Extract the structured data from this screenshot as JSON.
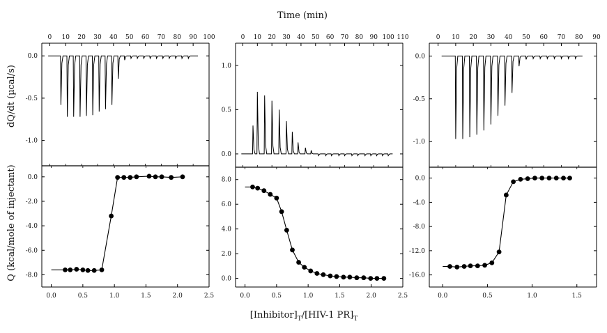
{
  "figure": {
    "top_axis_title": "Time (min)",
    "left_top_ylabel": "dQ/dt (µcal/s)",
    "left_bottom_ylabel": "Q (kcal/mole of injectant)",
    "bottom_axis_title_main": "[Inhibitor]",
    "bottom_axis_title_sub1": "T",
    "bottom_axis_title_mid": "/[HIV-1 PR]",
    "bottom_axis_title_sub2": "T"
  },
  "chart_data": [
    {
      "type": "line",
      "panel": "left-thermogram",
      "xlabel": "Time (min)",
      "ylabel": "dQ/dt (µcal/s)",
      "xlim": [
        -5,
        100
      ],
      "ylim": [
        -1.3,
        0.15
      ],
      "xticks": [
        0,
        10,
        20,
        30,
        40,
        50,
        60,
        70,
        80,
        90,
        100
      ],
      "yticks": [
        0.0,
        -0.5,
        -1.0
      ],
      "ytick_labels": [
        "0.0",
        "-0.5",
        "-1.0"
      ],
      "baseline": 0.0,
      "peaks": [
        {
          "t": 7,
          "height": -0.58
        },
        {
          "t": 11,
          "height": -0.72
        },
        {
          "t": 15,
          "height": -0.72
        },
        {
          "t": 19,
          "height": -0.72
        },
        {
          "t": 23,
          "height": -0.71
        },
        {
          "t": 27,
          "height": -0.7
        },
        {
          "t": 31,
          "height": -0.66
        },
        {
          "t": 35,
          "height": -0.63
        },
        {
          "t": 39,
          "height": -0.58
        },
        {
          "t": 43,
          "height": -0.27
        },
        {
          "t": 47,
          "height": -0.05
        },
        {
          "t": 51,
          "height": -0.03
        },
        {
          "t": 55,
          "height": -0.03
        },
        {
          "t": 59,
          "height": -0.03
        },
        {
          "t": 63,
          "height": -0.03
        },
        {
          "t": 67,
          "height": -0.03
        },
        {
          "t": 71,
          "height": -0.03
        },
        {
          "t": 75,
          "height": -0.03
        },
        {
          "t": 79,
          "height": -0.03
        },
        {
          "t": 83,
          "height": -0.03
        },
        {
          "t": 87,
          "height": -0.03
        }
      ],
      "trace_end": 93
    },
    {
      "type": "line",
      "panel": "middle-thermogram",
      "xlabel": "Time (min)",
      "xlim": [
        -5,
        110
      ],
      "ylim": [
        -0.15,
        1.25
      ],
      "xticks": [
        0,
        10,
        20,
        30,
        40,
        50,
        60,
        70,
        80,
        90,
        100,
        110
      ],
      "yticks": [
        1.0,
        0.5,
        0.0
      ],
      "ytick_labels": [
        "1.0",
        "0.5",
        "0.0"
      ],
      "baseline": 0.0,
      "peaks": [
        {
          "t": 7,
          "height": 0.32
        },
        {
          "t": 10,
          "height": 0.7
        },
        {
          "t": 15,
          "height": 0.66
        },
        {
          "t": 20,
          "height": 0.6
        },
        {
          "t": 25,
          "height": 0.5
        },
        {
          "t": 30,
          "height": 0.37
        },
        {
          "t": 34,
          "height": 0.25
        },
        {
          "t": 38,
          "height": 0.13
        },
        {
          "t": 43,
          "height": 0.07
        },
        {
          "t": 47,
          "height": 0.04
        },
        {
          "t": 52,
          "height": -0.02
        },
        {
          "t": 57,
          "height": -0.02
        },
        {
          "t": 61,
          "height": -0.02
        },
        {
          "t": 66,
          "height": -0.02
        },
        {
          "t": 70,
          "height": -0.02
        },
        {
          "t": 75,
          "height": -0.02
        },
        {
          "t": 79,
          "height": -0.02
        },
        {
          "t": 84,
          "height": -0.02
        },
        {
          "t": 88,
          "height": -0.02
        },
        {
          "t": 92,
          "height": -0.02
        },
        {
          "t": 96,
          "height": -0.02
        },
        {
          "t": 100,
          "height": -0.02
        }
      ],
      "trace_end": 103
    },
    {
      "type": "line",
      "panel": "right-thermogram",
      "xlabel": "Time (min)",
      "xlim": [
        -5,
        90
      ],
      "ylim": [
        -1.3,
        0.15
      ],
      "xticks": [
        0,
        10,
        20,
        30,
        40,
        50,
        60,
        70,
        80,
        90
      ],
      "yticks": [
        0.0,
        -0.5,
        -1.0
      ],
      "ytick_labels": [
        "0.0",
        "-0.5",
        "-1.0"
      ],
      "baseline": 0.0,
      "peaks": [
        {
          "t": 10,
          "height": -0.97
        },
        {
          "t": 14,
          "height": -0.97
        },
        {
          "t": 18,
          "height": -0.95
        },
        {
          "t": 22,
          "height": -0.92
        },
        {
          "t": 26,
          "height": -0.87
        },
        {
          "t": 30,
          "height": -0.8
        },
        {
          "t": 34,
          "height": -0.7
        },
        {
          "t": 38,
          "height": -0.58
        },
        {
          "t": 42,
          "height": -0.43
        },
        {
          "t": 46,
          "height": -0.12
        },
        {
          "t": 50,
          "height": -0.04
        },
        {
          "t": 54,
          "height": -0.03
        },
        {
          "t": 58,
          "height": -0.03
        },
        {
          "t": 62,
          "height": -0.03
        },
        {
          "t": 66,
          "height": -0.03
        },
        {
          "t": 70,
          "height": -0.03
        },
        {
          "t": 74,
          "height": -0.03
        },
        {
          "t": 78,
          "height": -0.03
        }
      ],
      "trace_start": 2,
      "trace_end": 82
    },
    {
      "type": "scatter",
      "panel": "left-isotherm",
      "xlabel": "[Inhibitor]T/[HIV-1 PR]T",
      "ylabel": "Q (kcal/mole of injectant)",
      "xlim": [
        -0.15,
        2.5
      ],
      "ylim": [
        -9.0,
        0.9
      ],
      "xticks": [
        0.0,
        0.5,
        1.0,
        1.5,
        2.0,
        2.5
      ],
      "xtick_labels": [
        "0.0",
        "0.5",
        "1.0",
        "1.5",
        "2.0",
        "2.5"
      ],
      "yticks": [
        0.0,
        -2.0,
        -4.0,
        -6.0,
        -8.0
      ],
      "ytick_labels": [
        "0.0",
        "-2.0",
        "-4.0",
        "-6.0",
        "-8.0"
      ],
      "fit_start": 0.0,
      "points": [
        {
          "x": 0.22,
          "y": -7.6
        },
        {
          "x": 0.3,
          "y": -7.6
        },
        {
          "x": 0.4,
          "y": -7.55
        },
        {
          "x": 0.5,
          "y": -7.6
        },
        {
          "x": 0.58,
          "y": -7.65
        },
        {
          "x": 0.68,
          "y": -7.65
        },
        {
          "x": 0.8,
          "y": -7.6
        },
        {
          "x": 0.95,
          "y": -3.2
        },
        {
          "x": 1.05,
          "y": -0.05
        },
        {
          "x": 1.15,
          "y": -0.05
        },
        {
          "x": 1.25,
          "y": -0.05
        },
        {
          "x": 1.35,
          "y": 0.0
        },
        {
          "x": 1.55,
          "y": 0.05
        },
        {
          "x": 1.65,
          "y": 0.0
        },
        {
          "x": 1.75,
          "y": 0.0
        },
        {
          "x": 1.9,
          "y": -0.05
        },
        {
          "x": 2.08,
          "y": 0.0
        }
      ]
    },
    {
      "type": "scatter",
      "panel": "middle-isotherm",
      "xlabel": "[Inhibitor]T/[HIV-1 PR]T",
      "xlim": [
        -0.15,
        2.5
      ],
      "ylim": [
        -0.7,
        9.0
      ],
      "xticks": [
        0.0,
        0.5,
        1.0,
        1.5,
        2.0,
        2.5
      ],
      "xtick_labels": [
        "0.0",
        "0.5",
        "1.0",
        "1.5",
        "2.0",
        "2.5"
      ],
      "yticks": [
        8.0,
        6.0,
        4.0,
        2.0,
        0.0
      ],
      "ytick_labels": [
        "8.0",
        "6.0",
        "4.0",
        "2.0",
        "0.0"
      ],
      "fit_start": 0.0,
      "points": [
        {
          "x": 0.12,
          "y": 7.4
        },
        {
          "x": 0.2,
          "y": 7.3
        },
        {
          "x": 0.3,
          "y": 7.1
        },
        {
          "x": 0.4,
          "y": 6.8
        },
        {
          "x": 0.5,
          "y": 6.5
        },
        {
          "x": 0.58,
          "y": 5.4
        },
        {
          "x": 0.66,
          "y": 3.9
        },
        {
          "x": 0.75,
          "y": 2.3
        },
        {
          "x": 0.85,
          "y": 1.3
        },
        {
          "x": 0.94,
          "y": 0.9
        },
        {
          "x": 1.04,
          "y": 0.6
        },
        {
          "x": 1.14,
          "y": 0.4
        },
        {
          "x": 1.24,
          "y": 0.3
        },
        {
          "x": 1.35,
          "y": 0.2
        },
        {
          "x": 1.45,
          "y": 0.15
        },
        {
          "x": 1.56,
          "y": 0.1
        },
        {
          "x": 1.66,
          "y": 0.1
        },
        {
          "x": 1.77,
          "y": 0.05
        },
        {
          "x": 1.88,
          "y": 0.05
        },
        {
          "x": 1.99,
          "y": 0.0
        },
        {
          "x": 2.09,
          "y": 0.0
        },
        {
          "x": 2.2,
          "y": 0.0
        }
      ]
    },
    {
      "type": "scatter",
      "panel": "right-isotherm",
      "xlabel": "[Inhibitor]T/[HIV-1 PR]T",
      "xlim": [
        -0.15,
        1.72
      ],
      "ylim": [
        -18.0,
        1.8
      ],
      "xticks": [
        0.0,
        0.5,
        1.0,
        1.5
      ],
      "xtick_labels": [
        "0.0",
        "0.5",
        "1.0",
        "1.5"
      ],
      "yticks": [
        0.0,
        -4.0,
        -8.0,
        -12.0,
        -16.0
      ],
      "ytick_labels": [
        "0.0",
        "-4.0",
        "-8.0",
        "-12.0",
        "-16.0"
      ],
      "fit_start": 0.0,
      "points": [
        {
          "x": 0.08,
          "y": -14.6
        },
        {
          "x": 0.16,
          "y": -14.7
        },
        {
          "x": 0.24,
          "y": -14.6
        },
        {
          "x": 0.31,
          "y": -14.5
        },
        {
          "x": 0.39,
          "y": -14.5
        },
        {
          "x": 0.47,
          "y": -14.4
        },
        {
          "x": 0.55,
          "y": -14.0
        },
        {
          "x": 0.63,
          "y": -12.2
        },
        {
          "x": 0.71,
          "y": -2.8
        },
        {
          "x": 0.79,
          "y": -0.6
        },
        {
          "x": 0.87,
          "y": -0.2
        },
        {
          "x": 0.95,
          "y": -0.1
        },
        {
          "x": 1.03,
          "y": 0.0
        },
        {
          "x": 1.11,
          "y": 0.0
        },
        {
          "x": 1.19,
          "y": 0.0
        },
        {
          "x": 1.27,
          "y": 0.0
        },
        {
          "x": 1.35,
          "y": 0.0
        },
        {
          "x": 1.42,
          "y": 0.0
        }
      ]
    }
  ]
}
